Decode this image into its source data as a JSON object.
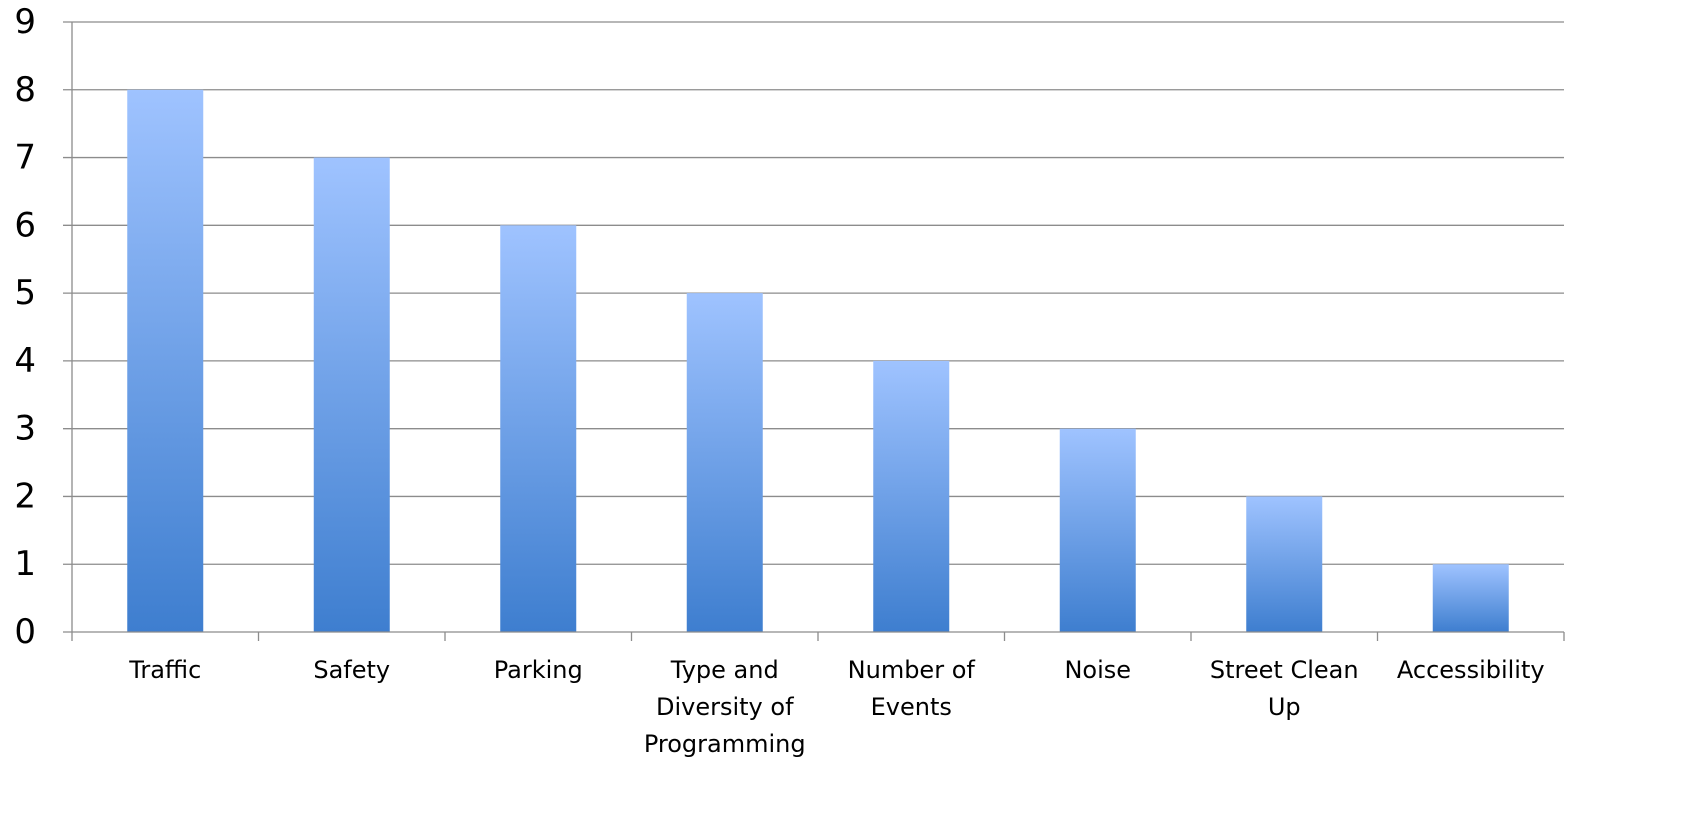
{
  "chart_data": {
    "type": "bar",
    "title": "",
    "xlabel": "",
    "ylabel": "",
    "categories": [
      [
        "Traffic"
      ],
      [
        "Safety"
      ],
      [
        "Parking"
      ],
      [
        "Type and",
        "Diversity of",
        "Programming"
      ],
      [
        "Number of",
        "Events"
      ],
      [
        "Noise"
      ],
      [
        "Street Clean",
        "Up"
      ],
      [
        "Accessibility"
      ]
    ],
    "values": [
      8,
      7,
      6,
      5,
      4,
      3,
      2,
      1
    ],
    "ylim": [
      0,
      9
    ],
    "yticks": [
      "0",
      "1",
      "2",
      "3",
      "4",
      "5",
      "6",
      "7",
      "8",
      "9"
    ],
    "grid": true,
    "legend": "none",
    "colors": {
      "bar_top": "#9fc3ff",
      "bar_bottom": "#3e7ecf",
      "grid": "#8c8c8c",
      "text": "#000000"
    }
  }
}
